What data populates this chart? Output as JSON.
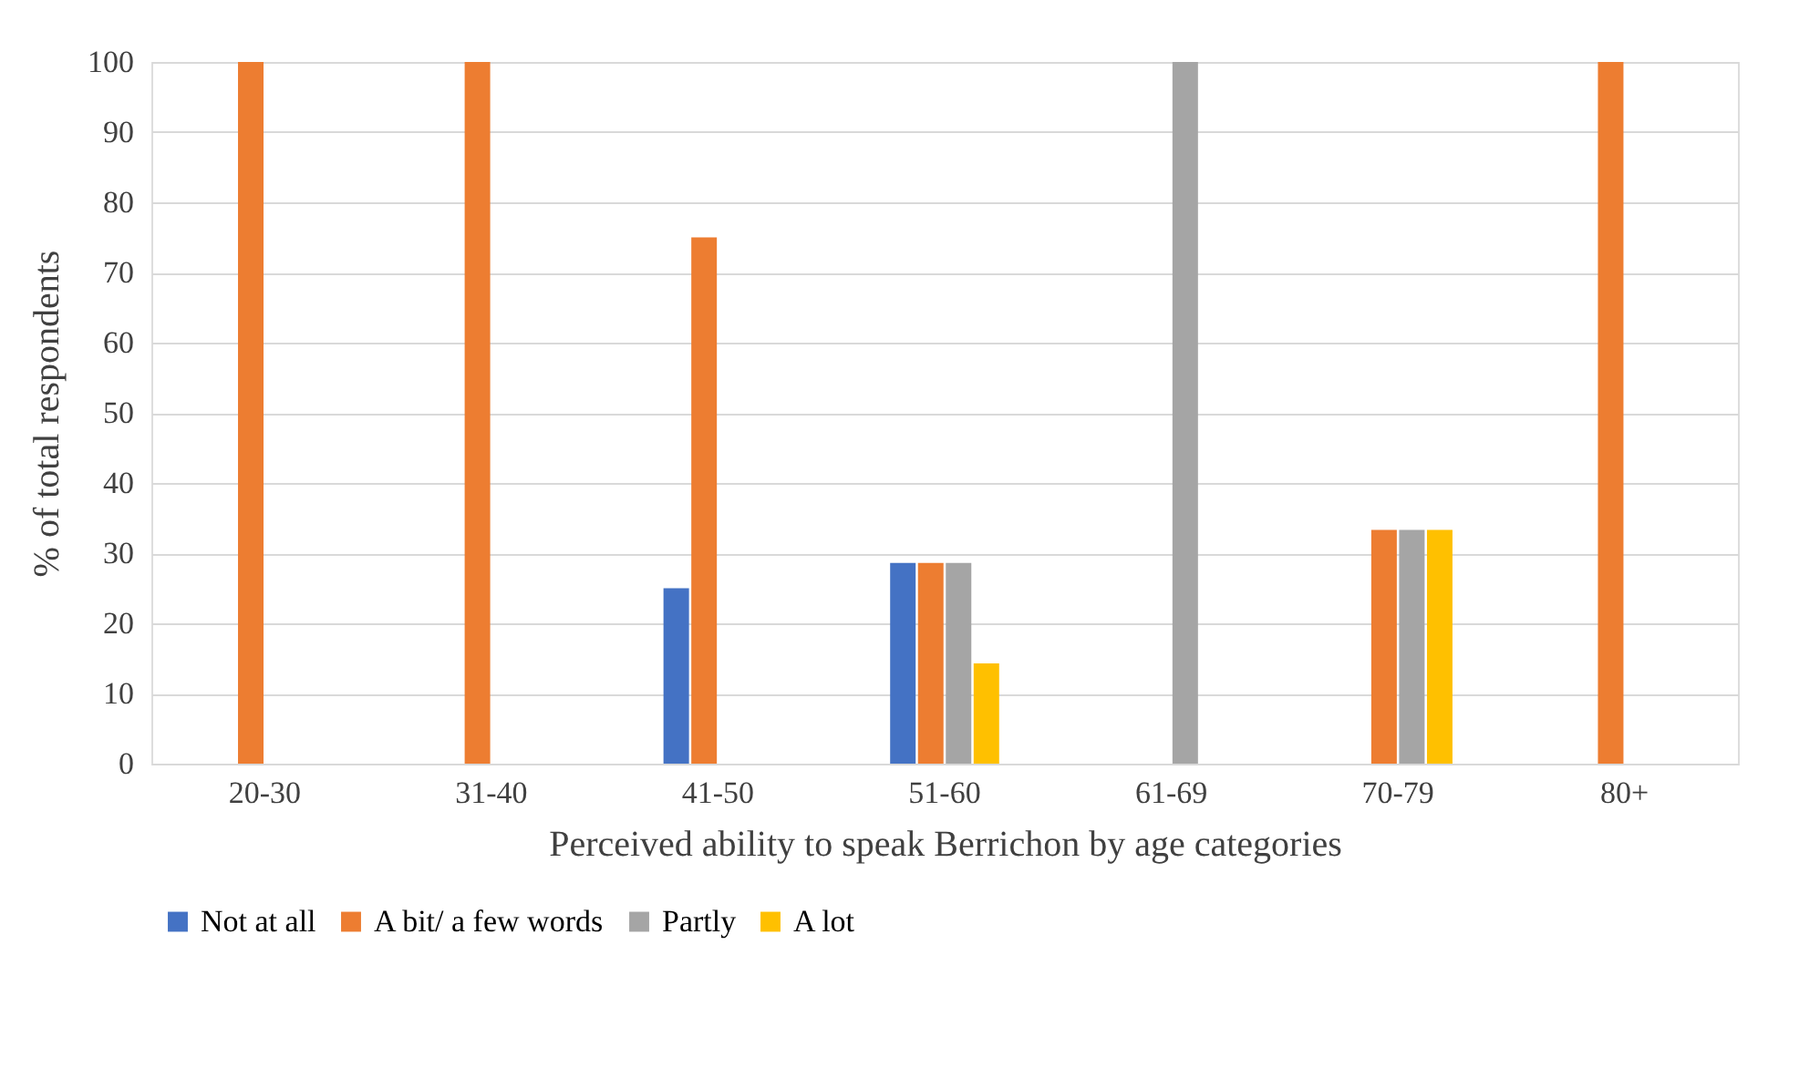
{
  "chart_data": {
    "type": "bar",
    "xlabel": "Perceived ability to speak Berrichon by age categories",
    "ylabel": "% of total respondents",
    "categories": [
      "20-30",
      "31-40",
      "41-50",
      "51-60",
      "61-69",
      "70-79",
      "80+"
    ],
    "series": [
      {
        "name": "Not at all",
        "color": "#4472c4",
        "values": [
          null,
          null,
          25,
          28.6,
          null,
          null,
          null
        ]
      },
      {
        "name": "A bit/ a few words",
        "color": "#ed7d31",
        "values": [
          100,
          100,
          75,
          28.6,
          null,
          33.3,
          100
        ]
      },
      {
        "name": "Partly",
        "color": "#a5a5a5",
        "values": [
          null,
          null,
          null,
          28.6,
          100,
          33.3,
          null
        ]
      },
      {
        "name": "A lot",
        "color": "#ffc000",
        "values": [
          null,
          null,
          null,
          14.3,
          null,
          33.3,
          null
        ]
      }
    ],
    "ylim": [
      0,
      100
    ],
    "yticks": [
      0,
      10,
      20,
      30,
      40,
      50,
      60,
      70,
      80,
      90,
      100
    ],
    "grid": "y",
    "legend": "bottom"
  }
}
